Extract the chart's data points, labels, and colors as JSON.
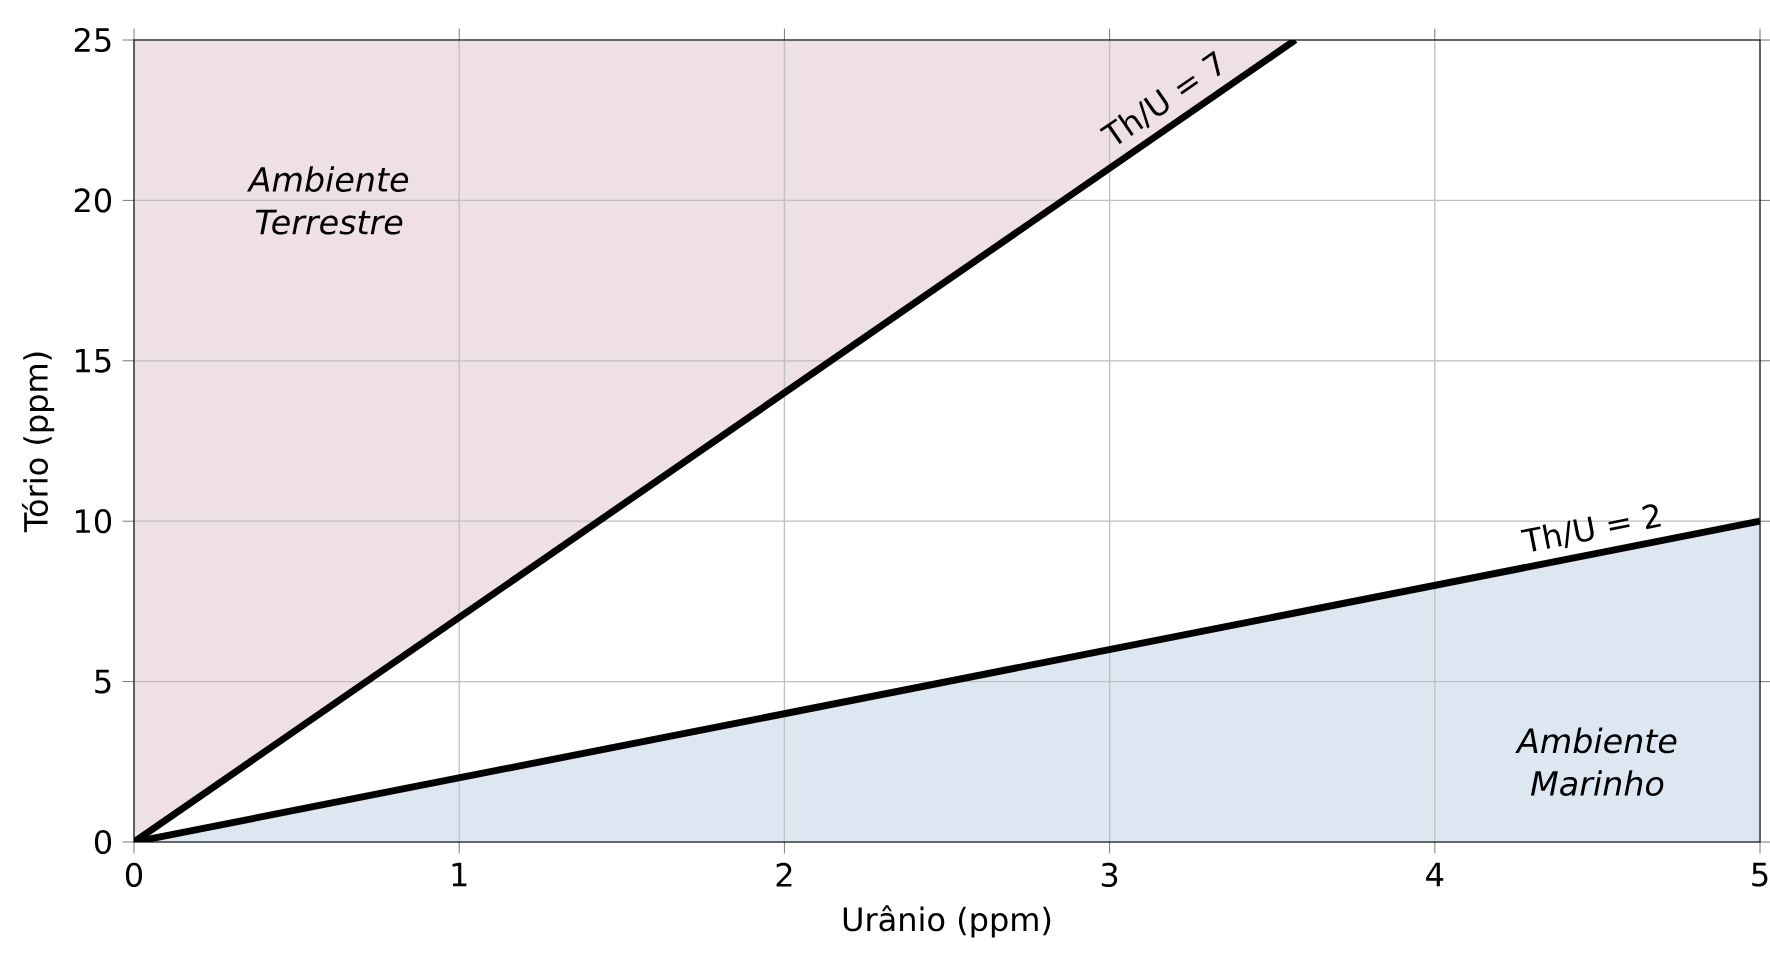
{
  "chart_data": {
    "type": "line",
    "xlabel": "Urânio (ppm)",
    "ylabel": "Tório (ppm)",
    "xlim": [
      0,
      5
    ],
    "ylim": [
      0,
      25
    ],
    "xticks": [
      0,
      1,
      2,
      3,
      4,
      5
    ],
    "yticks": [
      0,
      5,
      10,
      15,
      20,
      25
    ],
    "grid": true,
    "line_style": "solid",
    "series": [
      {
        "name": "Th/U = 7",
        "color": "#000000",
        "x": [
          0,
          3.571
        ],
        "values": [
          0,
          25
        ]
      },
      {
        "name": "Th/U = 2",
        "color": "#000000",
        "x": [
          0,
          5
        ],
        "values": [
          0,
          10
        ]
      }
    ],
    "annotations": [
      "Ambiente Terrestre",
      "Ambiente Marinho"
    ]
  }
}
